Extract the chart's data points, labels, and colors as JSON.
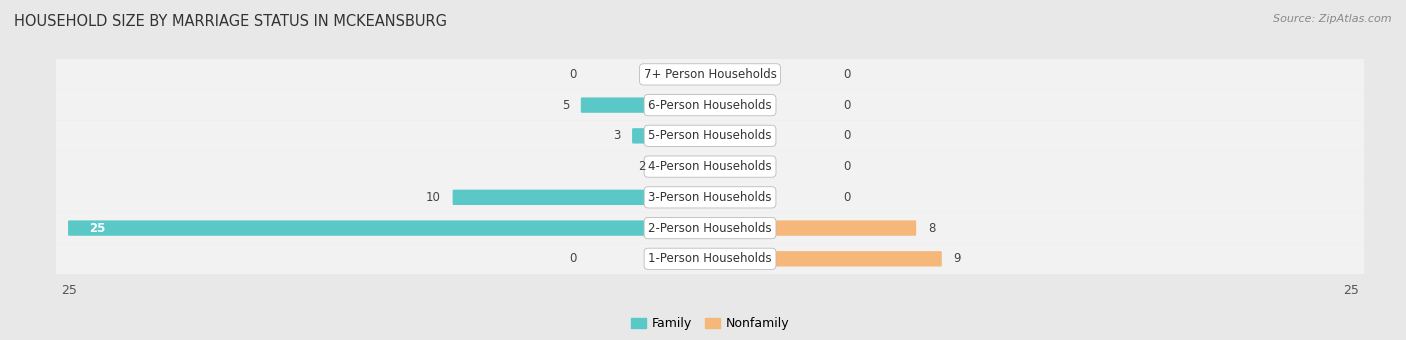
{
  "title": "HOUSEHOLD SIZE BY MARRIAGE STATUS IN MCKEANSBURG",
  "source": "Source: ZipAtlas.com",
  "categories": [
    "7+ Person Households",
    "6-Person Households",
    "5-Person Households",
    "4-Person Households",
    "3-Person Households",
    "2-Person Households",
    "1-Person Households"
  ],
  "family_values": [
    0,
    5,
    3,
    2,
    10,
    25,
    0
  ],
  "nonfamily_values": [
    0,
    0,
    0,
    0,
    0,
    8,
    9
  ],
  "family_color": "#5BC8C8",
  "nonfamily_color": "#F5B87A",
  "xlim": 25,
  "background_color": "#e8e8e8",
  "row_bg_color": "#f2f2f2",
  "title_fontsize": 10.5,
  "label_fontsize": 8.5,
  "axis_label_fontsize": 9,
  "value_fontsize": 8.5
}
